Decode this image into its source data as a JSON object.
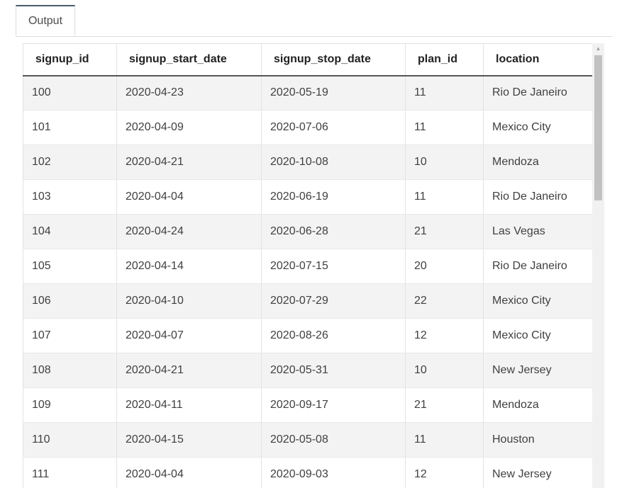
{
  "tabs": [
    {
      "label": "Output"
    }
  ],
  "table": {
    "columns": [
      "signup_id",
      "signup_start_date",
      "signup_stop_date",
      "plan_id",
      "location"
    ],
    "rows": [
      [
        "100",
        "2020-04-23",
        "2020-05-19",
        "11",
        "Rio De Janeiro"
      ],
      [
        "101",
        "2020-04-09",
        "2020-07-06",
        "11",
        "Mexico City"
      ],
      [
        "102",
        "2020-04-21",
        "2020-10-08",
        "10",
        "Mendoza"
      ],
      [
        "103",
        "2020-04-04",
        "2020-06-19",
        "11",
        "Rio De Janeiro"
      ],
      [
        "104",
        "2020-04-24",
        "2020-06-28",
        "21",
        "Las Vegas"
      ],
      [
        "105",
        "2020-04-14",
        "2020-07-15",
        "20",
        "Rio De Janeiro"
      ],
      [
        "106",
        "2020-04-10",
        "2020-07-29",
        "22",
        "Mexico City"
      ],
      [
        "107",
        "2020-04-07",
        "2020-08-26",
        "12",
        "Mexico City"
      ],
      [
        "108",
        "2020-04-21",
        "2020-05-31",
        "10",
        "New Jersey"
      ],
      [
        "109",
        "2020-04-11",
        "2020-09-17",
        "21",
        "Mendoza"
      ],
      [
        "110",
        "2020-04-15",
        "2020-05-08",
        "11",
        "Houston"
      ],
      [
        "111",
        "2020-04-04",
        "2020-09-03",
        "12",
        "New Jersey"
      ]
    ]
  },
  "scrollbar": {
    "up_arrow_icon": "triangle-up"
  }
}
